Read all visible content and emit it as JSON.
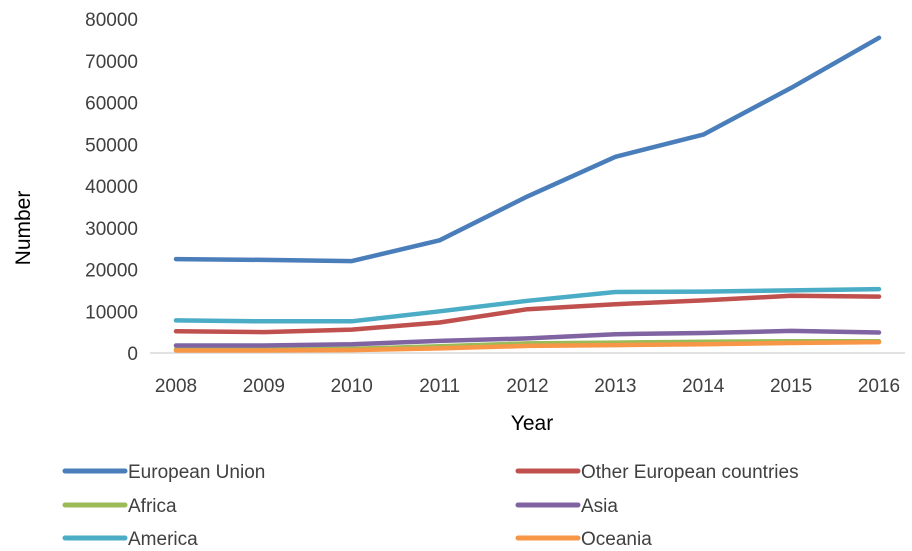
{
  "chart_data": {
    "type": "line",
    "xlabel": "Year",
    "ylabel": "Number",
    "x": [
      "2008",
      "2009",
      "2010",
      "2011",
      "2012",
      "2013",
      "2014",
      "2015",
      "2016"
    ],
    "ylim": [
      0,
      80000
    ],
    "yticks": [
      0,
      10000,
      20000,
      30000,
      40000,
      50000,
      60000,
      70000,
      80000
    ],
    "grid": false,
    "legend_position": "bottom",
    "series": [
      {
        "name": "European Union",
        "color": "#4a7ebb",
        "values": [
          22500,
          22300,
          22000,
          27000,
          37500,
          47000,
          52300,
          63500,
          75500
        ]
      },
      {
        "name": "Other European countries",
        "color": "#c0504d",
        "values": [
          5200,
          5000,
          5600,
          7300,
          10500,
          11700,
          12600,
          13700,
          13500
        ]
      },
      {
        "name": "Africa",
        "color": "#9bbb59",
        "values": [
          900,
          900,
          1000,
          1600,
          2300,
          2500,
          2700,
          2800,
          2800
        ]
      },
      {
        "name": "Asia",
        "color": "#8064a2",
        "values": [
          1800,
          1800,
          2100,
          2900,
          3500,
          4500,
          4800,
          5300,
          4900
        ]
      },
      {
        "name": "America",
        "color": "#4bacc6",
        "values": [
          7800,
          7600,
          7600,
          10000,
          12500,
          14600,
          14700,
          15000,
          15300
        ]
      },
      {
        "name": "Oceania",
        "color": "#f79646",
        "values": [
          600,
          600,
          700,
          1100,
          1700,
          1900,
          2100,
          2400,
          2600
        ]
      }
    ]
  }
}
